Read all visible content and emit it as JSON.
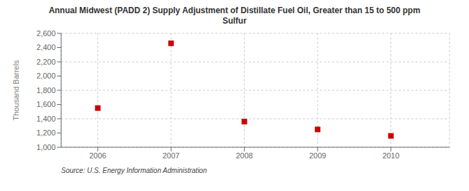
{
  "chart_data": {
    "type": "scatter",
    "title": "Annual Midwest (PADD 2) Supply Adjustment of Distillate Fuel Oil, Greater than 15 to 500 ppm\nSulfur",
    "ylabel": "Thousand Barrels",
    "annotations": [
      "Source: U.S. Energy Information Administration"
    ],
    "x": [
      2006,
      2007,
      2008,
      2009,
      2010
    ],
    "values": [
      1550,
      2460,
      1360,
      1250,
      1160
    ],
    "color": "#cc0000",
    "marker": "square",
    "xlim": [
      2005.5,
      2010.8
    ],
    "xticks": [
      2006,
      2007,
      2008,
      2009,
      2010
    ],
    "ylim": [
      1000,
      2600
    ],
    "yticks": [
      {
        "value": 1000,
        "label": "1,000"
      },
      {
        "value": 1200,
        "label": "1,200"
      },
      {
        "value": 1400,
        "label": "1,400"
      },
      {
        "value": 1600,
        "label": "1,600"
      },
      {
        "value": 1800,
        "label": "1,800"
      },
      {
        "value": 2000,
        "label": "2,000"
      },
      {
        "value": 2200,
        "label": "2,200"
      },
      {
        "value": 2400,
        "label": "2,400"
      },
      {
        "value": 2600,
        "label": "2,600"
      }
    ],
    "grid": true
  }
}
